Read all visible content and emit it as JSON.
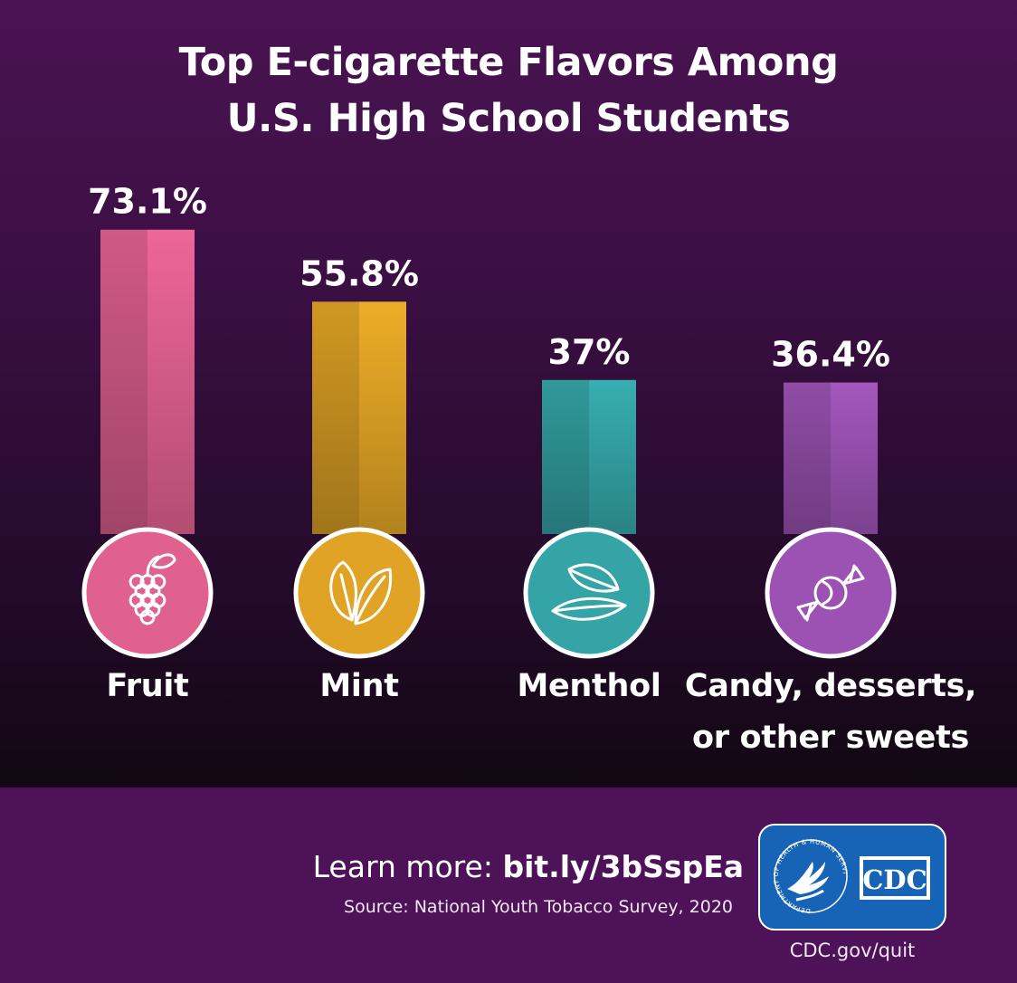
{
  "header": {
    "title_line1": "Top E-cigarette Flavors Among",
    "title_line2": "U.S. High School Students"
  },
  "chart_data": {
    "type": "bar",
    "title": "Top E-cigarette Flavors Among U.S. High School Students",
    "categories": [
      "Fruit",
      "Mint",
      "Menthol",
      "Candy, desserts, or other sweets"
    ],
    "values": [
      73.1,
      55.8,
      37,
      36.4
    ],
    "value_labels": [
      "73.1%",
      "55.8%",
      "37%",
      "36.4%"
    ],
    "unit": "%",
    "ylim": [
      0,
      100
    ],
    "grid": false,
    "legend": "none",
    "colors": [
      "#e0608f",
      "#e0a325",
      "#34a4a6",
      "#9b52b3"
    ],
    "icons": [
      "grapes-icon",
      "mint-leaf-icon",
      "menthol-leaves-icon",
      "candy-icon"
    ]
  },
  "labels": {
    "cat1": "Fruit",
    "cat2": "Mint",
    "cat3": "Menthol",
    "cat4_line1": "Candy, desserts,",
    "cat4_line2": "or other sweets"
  },
  "footer": {
    "learn_prefix": "Learn more:",
    "learn_link": "bit.ly/3bSspEa",
    "source": "Source: National Youth Tobacco Survey, 2020",
    "badge_text": "CDC",
    "seal_text": "DEPARTMENT OF HEALTH & HUMAN SERVICES USA",
    "url": "CDC.gov/quit"
  }
}
